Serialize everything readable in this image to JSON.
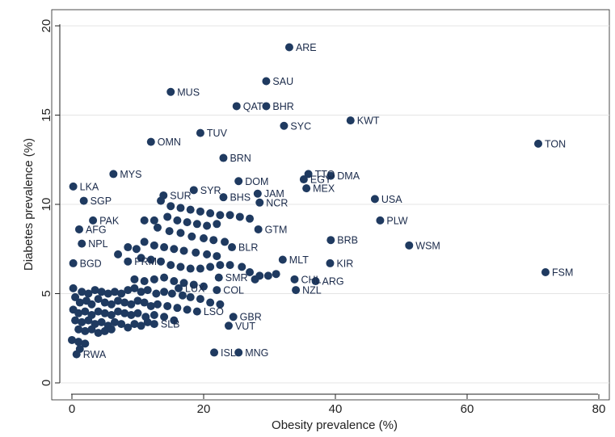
{
  "chart_data": {
    "type": "scatter",
    "xlabel": "Obesity prevalence (%)",
    "ylabel": "Diabetes prevalence (%)",
    "xlim": [
      0,
      80
    ],
    "ylim": [
      0,
      20
    ],
    "x_ticks": [
      0,
      20,
      40,
      60,
      80
    ],
    "y_ticks": [
      0,
      5,
      10,
      15,
      20
    ],
    "grid": "horizontal",
    "marker_color": "#1f3a60",
    "labeled_points": [
      {
        "label": "ARE",
        "x": 33.0,
        "y": 18.8
      },
      {
        "label": "SAU",
        "x": 29.5,
        "y": 16.9
      },
      {
        "label": "MUS",
        "x": 15.0,
        "y": 16.3
      },
      {
        "label": "QAT",
        "x": 25.0,
        "y": 15.5
      },
      {
        "label": "BHR",
        "x": 29.5,
        "y": 15.5
      },
      {
        "label": "SYC",
        "x": 32.2,
        "y": 14.4
      },
      {
        "label": "KWT",
        "x": 42.3,
        "y": 14.7
      },
      {
        "label": "TUV",
        "x": 19.5,
        "y": 14.0
      },
      {
        "label": "OMN",
        "x": 12.0,
        "y": 13.5
      },
      {
        "label": "TON",
        "x": 70.8,
        "y": 13.4
      },
      {
        "label": "BRN",
        "x": 23.0,
        "y": 12.6
      },
      {
        "label": "MYS",
        "x": 6.3,
        "y": 11.7
      },
      {
        "label": "TTO",
        "x": 35.9,
        "y": 11.7
      },
      {
        "label": "EGY",
        "x": 35.2,
        "y": 11.4
      },
      {
        "label": "DMA",
        "x": 39.3,
        "y": 11.6
      },
      {
        "label": "DOM",
        "x": 25.3,
        "y": 11.3
      },
      {
        "label": "LKA",
        "x": 0.2,
        "y": 11.0
      },
      {
        "label": "SYR",
        "x": 18.5,
        "y": 10.8
      },
      {
        "label": "MEX",
        "x": 35.6,
        "y": 10.9
      },
      {
        "label": "JAM",
        "x": 28.2,
        "y": 10.6
      },
      {
        "label": "SUR",
        "x": 13.9,
        "y": 10.5
      },
      {
        "label": "BHS",
        "x": 23.0,
        "y": 10.4
      },
      {
        "label": "USA",
        "x": 46.0,
        "y": 10.3
      },
      {
        "label": "SGP",
        "x": 1.8,
        "y": 10.2
      },
      {
        "label": "NCR",
        "x": 28.5,
        "y": 10.1
      },
      {
        "label": "PAK",
        "x": 3.2,
        "y": 9.1
      },
      {
        "label": "PLW",
        "x": 46.8,
        "y": 9.1
      },
      {
        "label": "AFG",
        "x": 1.1,
        "y": 8.6
      },
      {
        "label": "GTM",
        "x": 28.3,
        "y": 8.6
      },
      {
        "label": "BRB",
        "x": 39.3,
        "y": 8.0
      },
      {
        "label": "NPL",
        "x": 1.5,
        "y": 7.8
      },
      {
        "label": "BLR",
        "x": 24.3,
        "y": 7.6
      },
      {
        "label": "WSM",
        "x": 51.2,
        "y": 7.7
      },
      {
        "label": "MLT",
        "x": 32.0,
        "y": 6.9
      },
      {
        "label": "KIR",
        "x": 39.2,
        "y": 6.7
      },
      {
        "label": "BGD",
        "x": 0.2,
        "y": 6.7
      },
      {
        "label": "PRM",
        "x": 8.5,
        "y": 6.8
      },
      {
        "label": "FSM",
        "x": 71.9,
        "y": 6.2
      },
      {
        "label": "ARG",
        "x": 37.0,
        "y": 5.7
      },
      {
        "label": "SMR",
        "x": 22.3,
        "y": 5.9
      },
      {
        "label": "CHL",
        "x": 33.8,
        "y": 5.8
      },
      {
        "label": "NZL",
        "x": 34.0,
        "y": 5.2
      },
      {
        "label": "COL",
        "x": 22.0,
        "y": 5.2
      },
      {
        "label": "LUX",
        "x": 16.2,
        "y": 5.3
      },
      {
        "label": "LSO",
        "x": 19.0,
        "y": 4.0
      },
      {
        "label": "GBR",
        "x": 24.5,
        "y": 3.7
      },
      {
        "label": "VUT",
        "x": 23.8,
        "y": 3.2
      },
      {
        "label": "SLB",
        "x": 12.5,
        "y": 3.3
      },
      {
        "label": "ISL",
        "x": 21.6,
        "y": 1.7
      },
      {
        "label": "MNG",
        "x": 25.3,
        "y": 1.7
      },
      {
        "label": "RWA",
        "x": 0.7,
        "y": 1.6
      }
    ],
    "unlabeled_points": [
      {
        "x": 13.5,
        "y": 10.2
      },
      {
        "x": 15.0,
        "y": 9.9
      },
      {
        "x": 16.5,
        "y": 9.8
      },
      {
        "x": 18.0,
        "y": 9.7
      },
      {
        "x": 19.5,
        "y": 9.6
      },
      {
        "x": 21.0,
        "y": 9.5
      },
      {
        "x": 22.5,
        "y": 9.4
      },
      {
        "x": 24.0,
        "y": 9.4
      },
      {
        "x": 25.5,
        "y": 9.3
      },
      {
        "x": 27.0,
        "y": 9.2
      },
      {
        "x": 14.5,
        "y": 9.3
      },
      {
        "x": 16.0,
        "y": 9.1
      },
      {
        "x": 17.5,
        "y": 9.0
      },
      {
        "x": 19.0,
        "y": 8.9
      },
      {
        "x": 20.5,
        "y": 8.8
      },
      {
        "x": 22.0,
        "y": 8.9
      },
      {
        "x": 11.0,
        "y": 9.1
      },
      {
        "x": 12.5,
        "y": 9.1
      },
      {
        "x": 13.0,
        "y": 8.7
      },
      {
        "x": 14.8,
        "y": 8.5
      },
      {
        "x": 16.5,
        "y": 8.4
      },
      {
        "x": 18.2,
        "y": 8.2
      },
      {
        "x": 20.0,
        "y": 8.1
      },
      {
        "x": 21.5,
        "y": 8.0
      },
      {
        "x": 23.2,
        "y": 7.9
      },
      {
        "x": 11.0,
        "y": 7.9
      },
      {
        "x": 12.5,
        "y": 7.7
      },
      {
        "x": 14.0,
        "y": 7.6
      },
      {
        "x": 15.5,
        "y": 7.5
      },
      {
        "x": 17.0,
        "y": 7.4
      },
      {
        "x": 18.8,
        "y": 7.3
      },
      {
        "x": 20.5,
        "y": 7.2
      },
      {
        "x": 22.0,
        "y": 7.1
      },
      {
        "x": 8.5,
        "y": 7.6
      },
      {
        "x": 9.8,
        "y": 7.5
      },
      {
        "x": 7.0,
        "y": 7.2
      },
      {
        "x": 10.5,
        "y": 7.0
      },
      {
        "x": 12.0,
        "y": 6.9
      },
      {
        "x": 13.5,
        "y": 6.8
      },
      {
        "x": 15.0,
        "y": 6.6
      },
      {
        "x": 16.5,
        "y": 6.5
      },
      {
        "x": 18.0,
        "y": 6.4
      },
      {
        "x": 19.5,
        "y": 6.4
      },
      {
        "x": 21.0,
        "y": 6.5
      },
      {
        "x": 22.5,
        "y": 6.6
      },
      {
        "x": 24.0,
        "y": 6.6
      },
      {
        "x": 25.8,
        "y": 6.5
      },
      {
        "x": 27.0,
        "y": 6.2
      },
      {
        "x": 28.5,
        "y": 6.0
      },
      {
        "x": 29.8,
        "y": 6.0
      },
      {
        "x": 31.0,
        "y": 6.1
      },
      {
        "x": 27.8,
        "y": 5.8
      },
      {
        "x": 9.5,
        "y": 5.8
      },
      {
        "x": 11.0,
        "y": 5.7
      },
      {
        "x": 12.5,
        "y": 5.8
      },
      {
        "x": 14.0,
        "y": 5.9
      },
      {
        "x": 15.5,
        "y": 5.7
      },
      {
        "x": 17.0,
        "y": 5.6
      },
      {
        "x": 18.5,
        "y": 5.5
      },
      {
        "x": 20.0,
        "y": 5.4
      },
      {
        "x": 0.2,
        "y": 5.3
      },
      {
        "x": 1.5,
        "y": 5.1
      },
      {
        "x": 2.5,
        "y": 5.0
      },
      {
        "x": 3.5,
        "y": 5.2
      },
      {
        "x": 4.5,
        "y": 5.1
      },
      {
        "x": 5.5,
        "y": 5.0
      },
      {
        "x": 6.5,
        "y": 5.1
      },
      {
        "x": 7.5,
        "y": 5.0
      },
      {
        "x": 8.5,
        "y": 5.2
      },
      {
        "x": 9.5,
        "y": 5.3
      },
      {
        "x": 10.5,
        "y": 5.1
      },
      {
        "x": 11.5,
        "y": 5.2
      },
      {
        "x": 12.8,
        "y": 5.0
      },
      {
        "x": 14.0,
        "y": 5.1
      },
      {
        "x": 15.2,
        "y": 5.0
      },
      {
        "x": 16.8,
        "y": 4.9
      },
      {
        "x": 18.0,
        "y": 4.8
      },
      {
        "x": 19.5,
        "y": 4.7
      },
      {
        "x": 21.0,
        "y": 4.5
      },
      {
        "x": 22.5,
        "y": 4.4
      },
      {
        "x": 0.5,
        "y": 4.8
      },
      {
        "x": 1.2,
        "y": 4.5
      },
      {
        "x": 2.2,
        "y": 4.6
      },
      {
        "x": 3.0,
        "y": 4.4
      },
      {
        "x": 4.0,
        "y": 4.7
      },
      {
        "x": 5.0,
        "y": 4.5
      },
      {
        "x": 6.0,
        "y": 4.4
      },
      {
        "x": 7.0,
        "y": 4.6
      },
      {
        "x": 8.0,
        "y": 4.5
      },
      {
        "x": 9.0,
        "y": 4.4
      },
      {
        "x": 10.0,
        "y": 4.6
      },
      {
        "x": 11.0,
        "y": 4.5
      },
      {
        "x": 12.0,
        "y": 4.3
      },
      {
        "x": 13.0,
        "y": 4.4
      },
      {
        "x": 14.5,
        "y": 4.3
      },
      {
        "x": 16.0,
        "y": 4.2
      },
      {
        "x": 17.5,
        "y": 4.1
      },
      {
        "x": 0.2,
        "y": 4.1
      },
      {
        "x": 1.0,
        "y": 3.9
      },
      {
        "x": 2.0,
        "y": 4.0
      },
      {
        "x": 3.0,
        "y": 3.8
      },
      {
        "x": 4.0,
        "y": 4.0
      },
      {
        "x": 5.0,
        "y": 3.9
      },
      {
        "x": 6.0,
        "y": 3.8
      },
      {
        "x": 7.0,
        "y": 4.0
      },
      {
        "x": 8.0,
        "y": 3.9
      },
      {
        "x": 9.0,
        "y": 3.8
      },
      {
        "x": 10.0,
        "y": 3.9
      },
      {
        "x": 11.2,
        "y": 3.7
      },
      {
        "x": 12.5,
        "y": 3.8
      },
      {
        "x": 14.0,
        "y": 3.7
      },
      {
        "x": 15.5,
        "y": 3.5
      },
      {
        "x": 0.5,
        "y": 3.5
      },
      {
        "x": 1.5,
        "y": 3.4
      },
      {
        "x": 2.5,
        "y": 3.5
      },
      {
        "x": 3.5,
        "y": 3.3
      },
      {
        "x": 4.5,
        "y": 3.4
      },
      {
        "x": 5.5,
        "y": 3.2
      },
      {
        "x": 6.5,
        "y": 3.4
      },
      {
        "x": 7.5,
        "y": 3.3
      },
      {
        "x": 8.5,
        "y": 3.1
      },
      {
        "x": 9.5,
        "y": 3.3
      },
      {
        "x": 10.5,
        "y": 3.2
      },
      {
        "x": 11.5,
        "y": 3.4
      },
      {
        "x": 1.0,
        "y": 3.0
      },
      {
        "x": 2.0,
        "y": 2.9
      },
      {
        "x": 3.0,
        "y": 3.0
      },
      {
        "x": 4.0,
        "y": 2.8
      },
      {
        "x": 5.0,
        "y": 2.9
      },
      {
        "x": 6.0,
        "y": 3.0
      },
      {
        "x": 0.0,
        "y": 2.4
      },
      {
        "x": 1.0,
        "y": 2.3
      },
      {
        "x": 2.0,
        "y": 2.2
      },
      {
        "x": 1.2,
        "y": 1.9
      }
    ]
  }
}
